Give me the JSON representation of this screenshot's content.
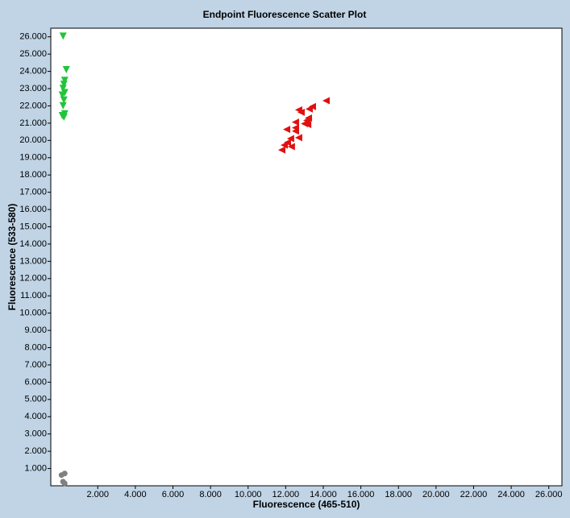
{
  "chart_data": {
    "type": "scatter",
    "title": "Endpoint Fluorescence Scatter Plot",
    "x_label": "Fluorescence (465-510)",
    "y_label": "Fluorescence (533-580)",
    "xlim": [
      -500,
      26700
    ],
    "ylim": [
      0,
      26500
    ],
    "xticks": [
      {
        "value": 2000,
        "label": "2.000"
      },
      {
        "value": 4000,
        "label": "4.000"
      },
      {
        "value": 6000,
        "label": "6.000"
      },
      {
        "value": 8000,
        "label": "8.000"
      },
      {
        "value": 10000,
        "label": "10.000"
      },
      {
        "value": 12000,
        "label": "12.000"
      },
      {
        "value": 14000,
        "label": "14.000"
      },
      {
        "value": 16000,
        "label": "16.000"
      },
      {
        "value": 18000,
        "label": "18.000"
      },
      {
        "value": 20000,
        "label": "20.000"
      },
      {
        "value": 22000,
        "label": "22.000"
      },
      {
        "value": 24000,
        "label": "24.000"
      },
      {
        "value": 26000,
        "label": "26.000"
      }
    ],
    "yticks": [
      {
        "value": 1000,
        "label": "1.000"
      },
      {
        "value": 2000,
        "label": "2.000"
      },
      {
        "value": 3000,
        "label": "3.000"
      },
      {
        "value": 4000,
        "label": "4.000"
      },
      {
        "value": 5000,
        "label": "5.000"
      },
      {
        "value": 6000,
        "label": "6.000"
      },
      {
        "value": 7000,
        "label": "7.000"
      },
      {
        "value": 8000,
        "label": "8.000"
      },
      {
        "value": 9000,
        "label": "9.000"
      },
      {
        "value": 10000,
        "label": "10.000"
      },
      {
        "value": 11000,
        "label": "11.000"
      },
      {
        "value": 12000,
        "label": "12.000"
      },
      {
        "value": 13000,
        "label": "13.000"
      },
      {
        "value": 14000,
        "label": "14.000"
      },
      {
        "value": 15000,
        "label": "15.000"
      },
      {
        "value": 16000,
        "label": "16.000"
      },
      {
        "value": 17000,
        "label": "17.000"
      },
      {
        "value": 18000,
        "label": "18.000"
      },
      {
        "value": 19000,
        "label": "19.000"
      },
      {
        "value": 20000,
        "label": "20.000"
      },
      {
        "value": 21000,
        "label": "21.000"
      },
      {
        "value": 22000,
        "label": "22.000"
      },
      {
        "value": 23000,
        "label": "23.000"
      },
      {
        "value": 24000,
        "label": "24.000"
      },
      {
        "value": 25000,
        "label": "25.000"
      },
      {
        "value": 26000,
        "label": "26.000"
      }
    ],
    "series": [
      {
        "color": "#22c43a",
        "marker": "triangle-down",
        "x": [
          154,
          325,
          240,
          197,
          154,
          240,
          111,
          197,
          154,
          240,
          111,
          197
        ],
        "values": [
          26040,
          24100,
          23480,
          23250,
          23010,
          22770,
          22630,
          22340,
          22010,
          21540,
          21440,
          21350
        ]
      },
      {
        "color": "#e01010",
        "marker": "triangle-left",
        "x": [
          14150,
          13420,
          13250,
          12690,
          12820,
          13210,
          13120,
          12520,
          13000,
          13170,
          12520,
          12520,
          12050,
          12690,
          12260,
          12090,
          11920,
          12300,
          11790
        ],
        "values": [
          22300,
          21960,
          21820,
          21770,
          21630,
          21300,
          21160,
          21060,
          20970,
          20920,
          20730,
          20540,
          20640,
          20160,
          20110,
          19880,
          19730,
          19640,
          19450
        ]
      },
      {
        "color": "#808080",
        "marker": "circle",
        "x": [
          240,
          70,
          150,
          240
        ],
        "values": [
          710,
          620,
          240,
          140
        ]
      }
    ]
  }
}
